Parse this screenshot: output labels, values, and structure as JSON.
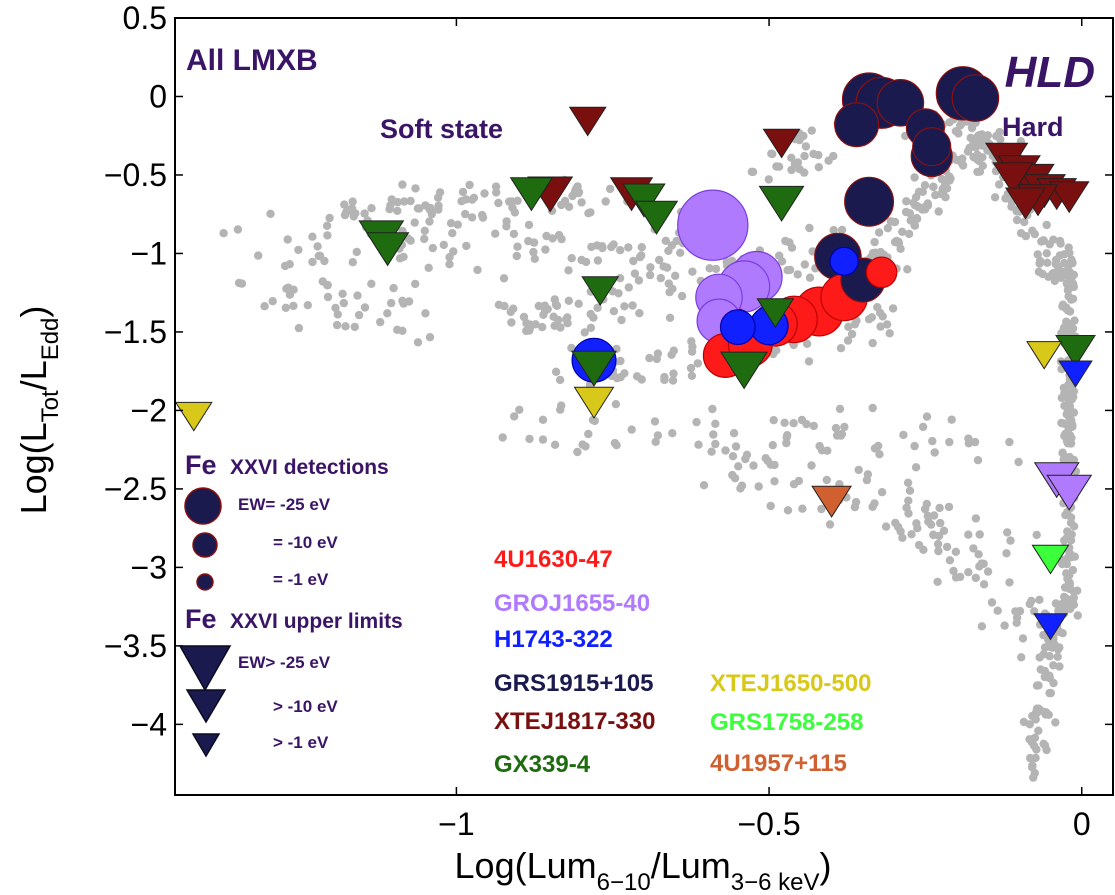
{
  "chart_data": {
    "type": "scatter",
    "xlabel": {
      "base": "Log(Lum",
      "sub1": "6−10",
      "mid": "/Lum",
      "sub2": "3−6 keV",
      "end": ")"
    },
    "ylabel": {
      "base": "Log(L",
      "sub1": "Tot",
      "mid": "/L",
      "sub2": "Edd",
      "end": ")"
    },
    "xlim": [
      -1.45,
      0.05
    ],
    "ylim": [
      -4.45,
      0.5
    ],
    "xticks": [
      {
        "v": -1,
        "label": "−1"
      },
      {
        "v": -0.5,
        "label": "−0.5"
      },
      {
        "v": 0,
        "label": "0"
      }
    ],
    "yticks": [
      {
        "v": 0.5,
        "label": "0.5"
      },
      {
        "v": 0,
        "label": "0"
      },
      {
        "v": -0.5,
        "label": "−0.5"
      },
      {
        "v": -1,
        "label": "−1"
      },
      {
        "v": -1.5,
        "label": "−1.5"
      },
      {
        "v": -2,
        "label": "−2"
      },
      {
        "v": -2.5,
        "label": "−2.5"
      },
      {
        "v": -3,
        "label": "−3"
      },
      {
        "v": -3.5,
        "label": "−3.5"
      },
      {
        "v": -4,
        "label": "−4"
      }
    ],
    "annotations": {
      "all_lmxb": "All LMXB",
      "hld": "HLD",
      "soft_state": "Soft state",
      "hard": "Hard"
    },
    "size_legend": {
      "det_title_fe": "Fe",
      "det_title_rest": "XXVI detections",
      "det_items": [
        "EW= -25 eV",
        "= -10 eV",
        "= -1 eV"
      ],
      "ul_title_fe": "Fe",
      "ul_title_rest": "XXVI upper limits",
      "ul_items": [
        "EW> -25 eV",
        "> -10 eV",
        "> -1 eV"
      ]
    },
    "colors": {
      "grid_points": "#b4b4b4",
      "annotation": "#3a1466",
      "legend_marker": "#1a1a4e"
    },
    "sources": [
      {
        "name": "4U1630-47",
        "color": "#ff1a1a",
        "border": "#c00000"
      },
      {
        "name": "GROJ1655-40",
        "color": "#b07aff",
        "border": "#7a3ce0"
      },
      {
        "name": "H1743-322",
        "color": "#1020ff",
        "border": "#0000aa"
      },
      {
        "name": "GRS1915+105",
        "color": "#1a1a4e",
        "border": "#8a1010"
      },
      {
        "name": "XTEJ1817-330",
        "color": "#7a0f0f",
        "border": "#3a0000"
      },
      {
        "name": "GX339-4",
        "color": "#1e6b10",
        "border": "#0a3a05"
      },
      {
        "name": "XTEJ1650-500",
        "color": "#d8c81a",
        "border": "#8a7a00"
      },
      {
        "name": "GRS1758-258",
        "color": "#3aff3a",
        "border": "#10a010"
      },
      {
        "name": "4U1957+115",
        "color": "#d06030",
        "border": "#903010"
      }
    ],
    "detections": [
      {
        "src": "GRS1915+105",
        "x": -0.34,
        "y": -0.02,
        "ew": -20
      },
      {
        "src": "GRS1915+105",
        "x": -0.32,
        "y": -0.04,
        "ew": -18
      },
      {
        "src": "GRS1915+105",
        "x": -0.29,
        "y": -0.04,
        "ew": -14
      },
      {
        "src": "GRS1915+105",
        "x": -0.36,
        "y": -0.18,
        "ew": -12
      },
      {
        "src": "GRS1915+105",
        "x": -0.19,
        "y": 0.02,
        "ew": -20
      },
      {
        "src": "GRS1915+105",
        "x": -0.17,
        "y": -0.01,
        "ew": -14
      },
      {
        "src": "GRS1915+105",
        "x": -0.25,
        "y": -0.2,
        "ew": -8
      },
      {
        "src": "GRS1915+105",
        "x": -0.24,
        "y": -0.32,
        "ew": -8
      },
      {
        "src": "GRS1915+105",
        "x": -0.24,
        "y": -0.38,
        "ew": -10
      },
      {
        "src": "GRS1915+105",
        "x": -0.34,
        "y": -0.67,
        "ew": -16
      },
      {
        "src": "GRS1915+105",
        "x": -0.39,
        "y": -1.02,
        "ew": -14
      },
      {
        "src": "GRS1915+105",
        "x": -0.35,
        "y": -1.17,
        "ew": -12
      },
      {
        "src": "GROJ1655-40",
        "x": -0.59,
        "y": -0.82,
        "ew": -40
      },
      {
        "src": "GROJ1655-40",
        "x": -0.52,
        "y": -1.15,
        "ew": -18
      },
      {
        "src": "GROJ1655-40",
        "x": -0.54,
        "y": -1.21,
        "ew": -18
      },
      {
        "src": "GROJ1655-40",
        "x": -0.58,
        "y": -1.28,
        "ew": -14
      },
      {
        "src": "GROJ1655-40",
        "x": -0.58,
        "y": -1.43,
        "ew": -12
      },
      {
        "src": "4U1630-47",
        "x": -0.56,
        "y": -1.5,
        "ew": -16
      },
      {
        "src": "4U1630-47",
        "x": -0.57,
        "y": -1.65,
        "ew": -12
      },
      {
        "src": "4U1630-47",
        "x": -0.53,
        "y": -1.58,
        "ew": -12
      },
      {
        "src": "4U1630-47",
        "x": -0.49,
        "y": -1.45,
        "ew": -12
      },
      {
        "src": "4U1630-47",
        "x": -0.46,
        "y": -1.42,
        "ew": -14
      },
      {
        "src": "4U1630-47",
        "x": -0.42,
        "y": -1.37,
        "ew": -16
      },
      {
        "src": "4U1630-47",
        "x": -0.38,
        "y": -1.28,
        "ew": -14
      },
      {
        "src": "4U1630-47",
        "x": -0.32,
        "y": -1.12,
        "ew": -4
      },
      {
        "src": "H1743-322",
        "x": -0.78,
        "y": -1.68,
        "ew": -12
      },
      {
        "src": "H1743-322",
        "x": -0.55,
        "y": -1.47,
        "ew": -6
      },
      {
        "src": "H1743-322",
        "x": -0.5,
        "y": -1.46,
        "ew": -8
      },
      {
        "src": "H1743-322",
        "x": -0.38,
        "y": -1.05,
        "ew": -3
      }
    ],
    "upper_limits": [
      {
        "src": "XTEJ1817-330",
        "x": -0.79,
        "y": -0.14,
        "ew": -8
      },
      {
        "src": "XTEJ1817-330",
        "x": -0.48,
        "y": -0.28,
        "ew": -8
      },
      {
        "src": "XTEJ1817-330",
        "x": -0.85,
        "y": -0.6,
        "ew": -14
      },
      {
        "src": "XTEJ1817-330",
        "x": -0.72,
        "y": -0.6,
        "ew": -12
      },
      {
        "src": "XTEJ1817-330",
        "x": -0.12,
        "y": -0.38,
        "ew": -12
      },
      {
        "src": "XTEJ1817-330",
        "x": -0.1,
        "y": -0.46,
        "ew": -12
      },
      {
        "src": "XTEJ1817-330",
        "x": -0.08,
        "y": -0.52,
        "ew": -14
      },
      {
        "src": "XTEJ1817-330",
        "x": -0.06,
        "y": -0.58,
        "ew": -12
      },
      {
        "src": "XTEJ1817-330",
        "x": -0.04,
        "y": -0.6,
        "ew": -10
      },
      {
        "src": "XTEJ1817-330",
        "x": -0.02,
        "y": -0.62,
        "ew": -10
      },
      {
        "src": "XTEJ1817-330",
        "x": -0.11,
        "y": -0.5,
        "ew": -10
      },
      {
        "src": "XTEJ1817-330",
        "x": -0.07,
        "y": -0.64,
        "ew": -10
      },
      {
        "src": "XTEJ1817-330",
        "x": -0.09,
        "y": -0.66,
        "ew": -10
      },
      {
        "src": "GX339-4",
        "x": -1.12,
        "y": -0.88,
        "ew": -14
      },
      {
        "src": "GX339-4",
        "x": -1.11,
        "y": -0.95,
        "ew": -12
      },
      {
        "src": "GX339-4",
        "x": -0.88,
        "y": -0.6,
        "ew": -12
      },
      {
        "src": "GX339-4",
        "x": -0.7,
        "y": -0.64,
        "ew": -12
      },
      {
        "src": "GX339-4",
        "x": -0.68,
        "y": -0.75,
        "ew": -12
      },
      {
        "src": "GX339-4",
        "x": -0.48,
        "y": -0.66,
        "ew": -14
      },
      {
        "src": "GX339-4",
        "x": -0.77,
        "y": -1.22,
        "ew": -8
      },
      {
        "src": "GX339-4",
        "x": -0.78,
        "y": -1.71,
        "ew": -14
      },
      {
        "src": "GX339-4",
        "x": -0.54,
        "y": -1.72,
        "ew": -16
      },
      {
        "src": "GX339-4",
        "x": -0.49,
        "y": -1.36,
        "ew": -8
      },
      {
        "src": "GX339-4",
        "x": -0.01,
        "y": -1.6,
        "ew": -10
      },
      {
        "src": "XTEJ1650-500",
        "x": -1.42,
        "y": -2.02,
        "ew": -8
      },
      {
        "src": "XTEJ1650-500",
        "x": -0.78,
        "y": -1.93,
        "ew": -10
      },
      {
        "src": "XTEJ1650-500",
        "x": -0.06,
        "y": -1.63,
        "ew": -7
      },
      {
        "src": "GROJ1655-40",
        "x": -0.04,
        "y": -2.42,
        "ew": -14
      },
      {
        "src": "GROJ1655-40",
        "x": -0.02,
        "y": -2.5,
        "ew": -14
      },
      {
        "src": "H1743-322",
        "x": -0.01,
        "y": -1.75,
        "ew": -6
      },
      {
        "src": "H1743-322",
        "x": -0.05,
        "y": -3.36,
        "ew": -6
      },
      {
        "src": "GRS1758-258",
        "x": -0.05,
        "y": -2.93,
        "ew": -8
      },
      {
        "src": "4U1957+115",
        "x": -0.4,
        "y": -2.56,
        "ew": -10
      }
    ]
  }
}
